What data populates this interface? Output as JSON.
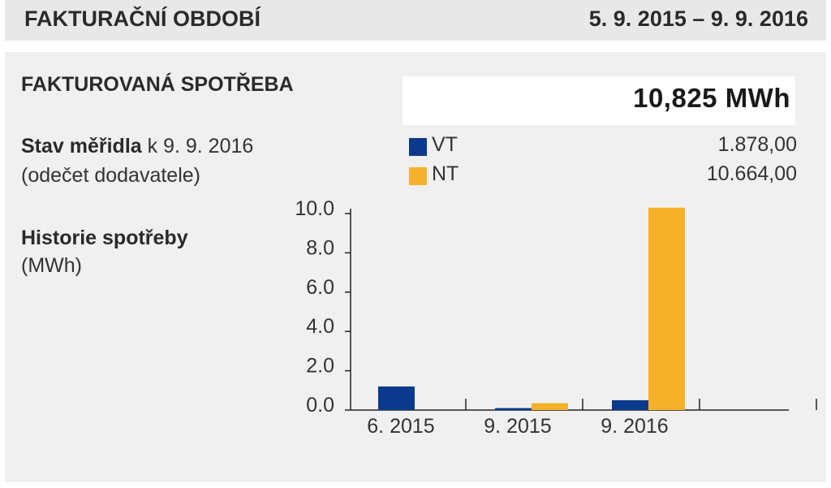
{
  "header": {
    "title": "FAKTURAČNÍ OBDOBÍ",
    "period": "5. 9. 2015 – 9. 9. 2016"
  },
  "consumption": {
    "title": "FAKTUROVANÁ SPOTŘEBA",
    "total": "10,825 MWh"
  },
  "meter": {
    "label_bold": "Stav měřidla",
    "label_rest": " k 9. 9. 2016",
    "note": "(odečet dodavatele)",
    "readings": [
      {
        "tariff": "VT",
        "value": "1.878,00",
        "color": "#0b3a8c"
      },
      {
        "tariff": "NT",
        "value": "10.664,00",
        "color": "#f5b12a"
      }
    ]
  },
  "history": {
    "title": "Historie spotřeby",
    "unit": "(MWh)"
  },
  "chart_data": {
    "type": "bar",
    "categories": [
      "6. 2015",
      "9. 2015",
      "9. 2016",
      ""
    ],
    "series": [
      {
        "name": "VT",
        "color": "#0b3a8c",
        "values": [
          1.2,
          0.1,
          0.5,
          null
        ]
      },
      {
        "name": "NT",
        "color": "#f5b12a",
        "values": [
          null,
          0.35,
          10.3,
          null
        ]
      }
    ],
    "ylim": [
      0,
      10
    ],
    "yticks": [
      "0.0",
      "2.0",
      "4.0",
      "6.0",
      "8.0",
      "10.0"
    ],
    "grid": false,
    "legend": "top"
  }
}
